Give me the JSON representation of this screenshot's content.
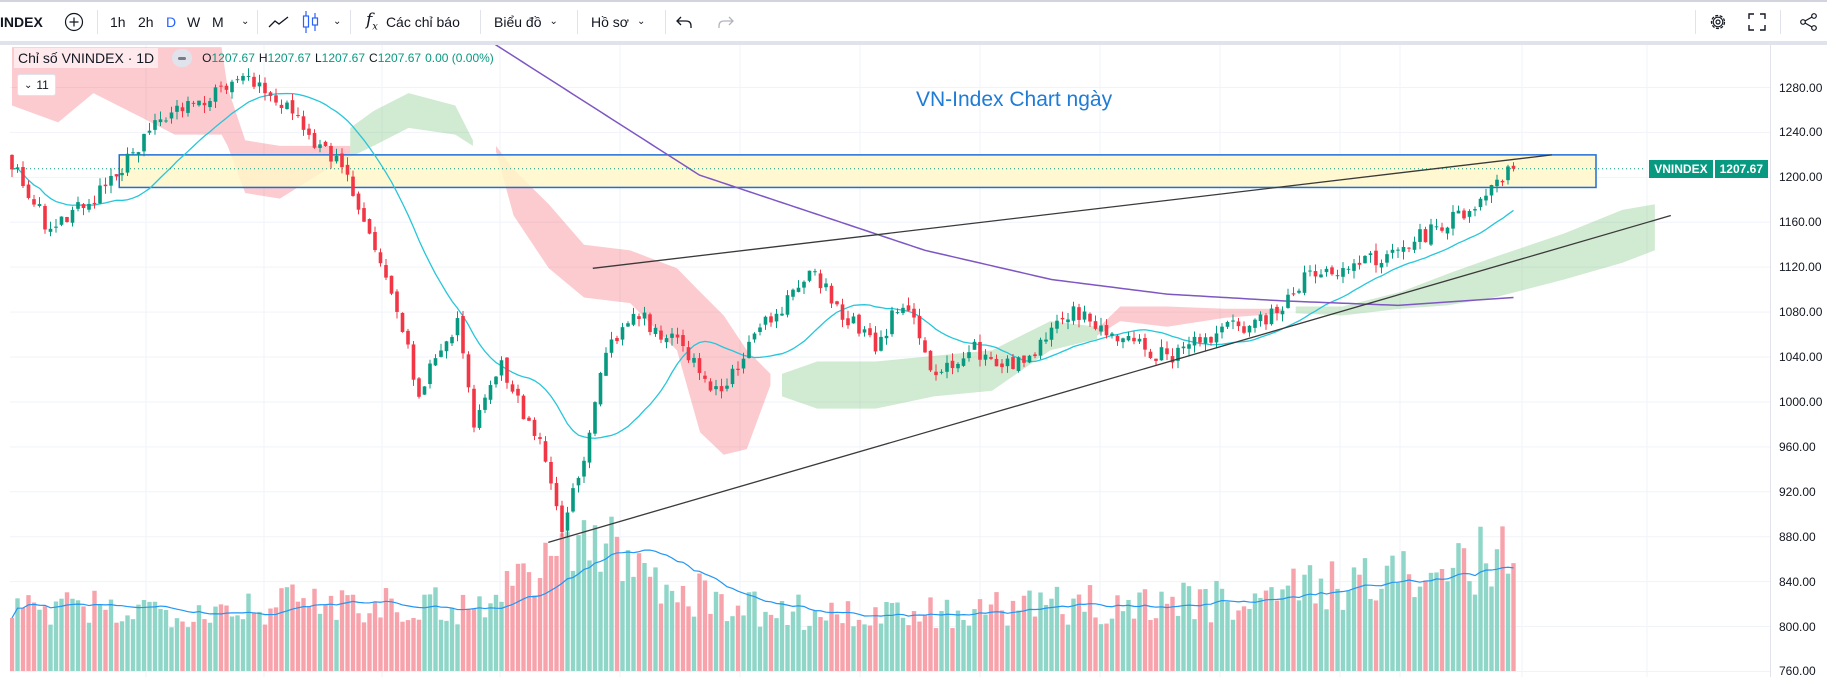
{
  "toolbar": {
    "symbol": "INDEX",
    "intervals": [
      "1h",
      "2h",
      "D",
      "W",
      "M"
    ],
    "active_interval": "D",
    "indicators_label": "Các chỉ báo",
    "chart_label": "Biểu đồ",
    "profile_label": "Hồ sơ",
    "icons": [
      "add-symbol-icon",
      "line-chart-icon",
      "candlestick-icon",
      "function-icon",
      "undo-icon",
      "redo-icon",
      "gear-icon",
      "fullscreen-icon",
      "share-icon"
    ]
  },
  "legend": {
    "title": "Chỉ số VNINDEX · 1D",
    "o_label": "O",
    "o": "1207.67",
    "h_label": "H",
    "h": "1207.67",
    "l_label": "L",
    "l": "1207.67",
    "c_label": "C",
    "c": "1207.67",
    "change": "0.00 (0.00%)",
    "collapse_count": "11"
  },
  "annotation": "VN-Index Chart ngày",
  "last_price": {
    "symbol": "VNINDEX",
    "value": "1207.67"
  },
  "colors": {
    "up": "#089981",
    "down": "#f23645",
    "ma20": "#26c6da",
    "ma200": "#7e57c2",
    "cloud_red": "#f23645",
    "cloud_green": "#4caf50",
    "zone_fill": "#fff7c9",
    "zone_border": "#1e6fd9",
    "annotation": "#1e7bd6"
  },
  "chart_data": {
    "type": "candlestick",
    "title": "VN-Index Chart ngày",
    "symbol": "VNINDEX",
    "timeframe": "1D",
    "ylim": [
      760,
      1280
    ],
    "y_ticks": [
      "1280.00",
      "1240.00",
      "1200.00",
      "1160.00",
      "1120.00",
      "1080.00",
      "1040.00",
      "1000.00",
      "960.00",
      "920.00",
      "880.00",
      "840.00",
      "800.00",
      "760.00"
    ],
    "bar_count": 274,
    "close_pivots": [
      [
        0,
        1215
      ],
      [
        7,
        1150
      ],
      [
        19,
        1200
      ],
      [
        25,
        1240
      ],
      [
        36,
        1275
      ],
      [
        43,
        1285
      ],
      [
        49,
        1265
      ],
      [
        55,
        1230
      ],
      [
        61,
        1205
      ],
      [
        68,
        1110
      ],
      [
        74,
        1010
      ],
      [
        81,
        1070
      ],
      [
        84,
        980
      ],
      [
        89,
        1030
      ],
      [
        97,
        950
      ],
      [
        100,
        880
      ],
      [
        104,
        955
      ],
      [
        108,
        1040
      ],
      [
        113,
        1080
      ],
      [
        119,
        1060
      ],
      [
        125,
        1030
      ],
      [
        129,
        1005
      ],
      [
        134,
        1050
      ],
      [
        138,
        1075
      ],
      [
        146,
        1115
      ],
      [
        149,
        1090
      ],
      [
        157,
        1050
      ],
      [
        162,
        1090
      ],
      [
        168,
        1025
      ],
      [
        174,
        1050
      ],
      [
        182,
        1030
      ],
      [
        193,
        1080
      ],
      [
        201,
        1055
      ],
      [
        210,
        1040
      ],
      [
        221,
        1065
      ],
      [
        231,
        1080
      ],
      [
        235,
        1115
      ],
      [
        244,
        1120
      ],
      [
        252,
        1135
      ],
      [
        261,
        1160
      ],
      [
        267,
        1180
      ],
      [
        273,
        1207.67
      ]
    ],
    "volume_pivots": [
      [
        0,
        0.42
      ],
      [
        40,
        0.45
      ],
      [
        60,
        0.5
      ],
      [
        85,
        0.45
      ],
      [
        95,
        0.75
      ],
      [
        105,
        0.95
      ],
      [
        115,
        0.7
      ],
      [
        130,
        0.45
      ],
      [
        160,
        0.38
      ],
      [
        190,
        0.45
      ],
      [
        220,
        0.5
      ],
      [
        240,
        0.62
      ],
      [
        260,
        0.68
      ],
      [
        273,
        0.85
      ]
    ],
    "ma200_pivots": [
      [
        87,
        1321
      ],
      [
        125,
        1202
      ],
      [
        166,
        1135
      ],
      [
        189,
        1109
      ],
      [
        210,
        1096
      ],
      [
        231,
        1090
      ],
      [
        252,
        1086
      ],
      [
        273,
        1093
      ]
    ],
    "ma_period": 20,
    "trendlines": [
      {
        "name": "resistance",
        "from": [
          105.6,
          1119
        ],
        "to": [
          280,
          1220
        ]
      },
      {
        "name": "support",
        "from": [
          97.5,
          875
        ],
        "to": [
          301.6,
          1166
        ]
      }
    ],
    "zone": {
      "from_index": 19.5,
      "to_index": 288,
      "low": 1191,
      "high": 1220
    },
    "ichimoku_cloud": [
      {
        "color": "red",
        "points": [
          [
            0,
            1316,
            1264
          ],
          [
            8.4,
            1316,
            1249
          ],
          [
            14.8,
            1316,
            1275
          ],
          [
            23.3,
            1316,
            1254
          ],
          [
            29.6,
            1316,
            1238
          ],
          [
            38.1,
            1316,
            1238
          ],
          [
            39.2,
            1280,
            1228
          ],
          [
            42.4,
            1233,
            1186
          ],
          [
            48.7,
            1228,
            1181
          ],
          [
            57.2,
            1228,
            1207
          ],
          [
            61.5,
            1228,
            1218
          ]
        ]
      },
      {
        "color": "green",
        "points": [
          [
            61.5,
            1244,
            1218
          ],
          [
            65.7,
            1259,
            1228
          ],
          [
            72.1,
            1275,
            1244
          ],
          [
            80.6,
            1264,
            1238
          ],
          [
            83.8,
            1233,
            1228
          ]
        ]
      },
      {
        "color": "red",
        "points": [
          [
            88,
            1228,
            1223
          ],
          [
            91.2,
            1207,
            1166
          ],
          [
            97.6,
            1176,
            1119
          ],
          [
            104,
            1140,
            1093
          ],
          [
            112.4,
            1135,
            1088
          ],
          [
            120.9,
            1119,
            1046
          ],
          [
            125.1,
            1098,
            973
          ],
          [
            129.4,
            1077,
            953
          ],
          [
            133.6,
            1046,
            958
          ],
          [
            137.9,
            1025,
            1015
          ]
        ]
      },
      {
        "color": "green",
        "points": [
          [
            140,
            1025,
            1005
          ],
          [
            146.4,
            1036,
            994
          ],
          [
            157,
            1036,
            994
          ],
          [
            167.6,
            1041,
            1005
          ],
          [
            178.2,
            1046,
            1010
          ],
          [
            188.8,
            1072,
            1046
          ],
          [
            197.3,
            1067,
            1056
          ]
        ]
      },
      {
        "color": "red",
        "points": [
          [
            197.3,
            1065,
            1059
          ],
          [
            201.5,
            1085,
            1072
          ],
          [
            210,
            1085,
            1067
          ],
          [
            220.6,
            1083,
            1075
          ],
          [
            231.2,
            1083,
            1079
          ]
        ]
      },
      {
        "color": "green",
        "points": [
          [
            233.4,
            1085,
            1079
          ],
          [
            241.9,
            1085,
            1077
          ],
          [
            252.5,
            1098,
            1083
          ],
          [
            261,
            1114,
            1086
          ],
          [
            269.5,
            1129,
            1093
          ],
          [
            282.2,
            1150,
            1109
          ],
          [
            292.8,
            1171,
            1124
          ],
          [
            298.7,
            1176,
            1135
          ]
        ]
      }
    ]
  }
}
